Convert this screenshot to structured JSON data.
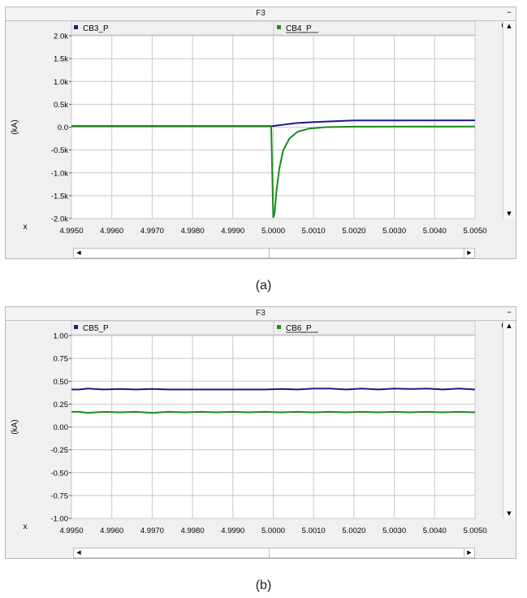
{
  "chart_data": [
    {
      "type": "line",
      "panel_title": "F3",
      "ylabel": "(kA)",
      "xlabel": "x",
      "xlim": [
        4.995,
        5.005
      ],
      "ylim": [
        -2000,
        2000
      ],
      "x_ticks": [
        "4.9950",
        "4.9960",
        "4.9970",
        "4.9980",
        "4.9990",
        "5.0000",
        "5.0010",
        "5.0020",
        "5.0030",
        "5.0040",
        "5.0050"
      ],
      "y_ticks": [
        "2.0k",
        "1.5k",
        "1.0k",
        "0.5k",
        "0.0",
        "-0.5k",
        "-1.0k",
        "-1.5k",
        "-2.0k"
      ],
      "y_tick_values": [
        2000,
        1500,
        1000,
        500,
        0,
        -500,
        -1000,
        -1500,
        -2000
      ],
      "grid": true,
      "legend_placement": "top",
      "series": [
        {
          "name": "CB3_P",
          "color": "#1a1a8c",
          "x": [
            4.995,
            5.0,
            5.00005,
            5.0003,
            5.0006,
            5.001,
            5.0015,
            5.002,
            5.005
          ],
          "y": [
            25,
            25,
            30,
            60,
            90,
            110,
            130,
            145,
            150
          ]
        },
        {
          "name": "CB4_P",
          "color": "#1a8c1a",
          "x": [
            4.995,
            4.99995,
            5.0,
            5.00003,
            5.00008,
            5.00015,
            5.00025,
            5.0004,
            5.0006,
            5.0009,
            5.0013,
            5.002,
            5.005
          ],
          "y": [
            20,
            20,
            -1980,
            -1900,
            -1400,
            -900,
            -500,
            -250,
            -100,
            -30,
            0,
            10,
            15
          ]
        }
      ]
    },
    {
      "type": "line",
      "panel_title": "F3",
      "ylabel": "(kA)",
      "xlabel": "x",
      "xlim": [
        4.995,
        5.005
      ],
      "ylim": [
        -1.0,
        1.0
      ],
      "x_ticks": [
        "4.9950",
        "4.9960",
        "4.9970",
        "4.9980",
        "4.9990",
        "5.0000",
        "5.0010",
        "5.0020",
        "5.0030",
        "5.0040",
        "5.0050"
      ],
      "y_ticks": [
        "1.00",
        "0.75",
        "0.50",
        "0.25",
        "0.00",
        "-0.25",
        "-0.50",
        "-0.75",
        "-1.00"
      ],
      "y_tick_values": [
        1.0,
        0.75,
        0.5,
        0.25,
        0,
        -0.25,
        -0.5,
        -0.75,
        -1.0
      ],
      "grid": true,
      "legend_placement": "top",
      "series": [
        {
          "name": "CB5_P",
          "color": "#1a1a8c",
          "x": [
            4.995,
            4.9952,
            4.9954,
            4.9958,
            4.9962,
            4.9966,
            4.997,
            4.9974,
            4.9978,
            4.9982,
            4.9986,
            4.999,
            4.9994,
            4.9998,
            5.0002,
            5.0006,
            5.001,
            5.0014,
            5.0018,
            5.0022,
            5.0026,
            5.003,
            5.0034,
            5.0038,
            5.0042,
            5.0046,
            5.005
          ],
          "y": [
            0.41,
            0.41,
            0.42,
            0.41,
            0.415,
            0.41,
            0.415,
            0.41,
            0.41,
            0.41,
            0.41,
            0.41,
            0.41,
            0.41,
            0.415,
            0.41,
            0.42,
            0.42,
            0.41,
            0.42,
            0.41,
            0.42,
            0.415,
            0.42,
            0.41,
            0.42,
            0.41
          ]
        },
        {
          "name": "CB6_P",
          "color": "#1a8c1a",
          "x": [
            4.995,
            4.9952,
            4.9954,
            4.9958,
            4.9962,
            4.9966,
            4.997,
            4.9974,
            4.9978,
            4.9982,
            4.9986,
            4.999,
            4.9994,
            4.9998,
            5.0002,
            5.0006,
            5.001,
            5.0014,
            5.0018,
            5.0022,
            5.0026,
            5.003,
            5.0034,
            5.0038,
            5.0042,
            5.0046,
            5.005
          ],
          "y": [
            0.165,
            0.165,
            0.155,
            0.165,
            0.16,
            0.165,
            0.155,
            0.165,
            0.16,
            0.165,
            0.16,
            0.165,
            0.16,
            0.165,
            0.16,
            0.165,
            0.16,
            0.165,
            0.16,
            0.165,
            0.16,
            0.165,
            0.16,
            0.165,
            0.16,
            0.165,
            0.16
          ]
        }
      ]
    }
  ],
  "captions": [
    "(a)",
    "(b)"
  ],
  "icons": {
    "minimize": "minimize-icon",
    "scroll_up": "arrow-up-icon",
    "scroll_down": "arrow-down-icon",
    "scroll_left": "arrow-left-icon",
    "scroll_right": "arrow-right-icon"
  }
}
